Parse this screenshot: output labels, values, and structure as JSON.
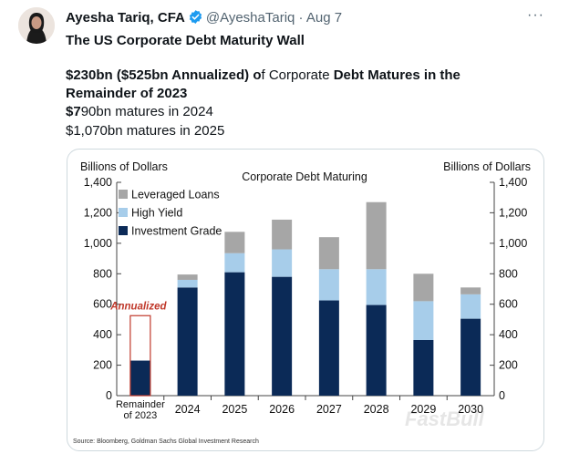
{
  "tweet": {
    "author_name": "Ayesha Tariq, CFA",
    "handle": "@AyeshaTariq",
    "separator": "·",
    "date": "Aug 7",
    "more_label": "···",
    "title": "The US Corporate Debt Maturity Wall",
    "line1_bold_a": "$230bn ($525bn Annualized) o",
    "line1_normal_a": "f Corporate ",
    "line1_bold_b": "Debt Matures in the",
    "line2": "Remainder of 2023",
    "line3_bold": "$7",
    "line3_normal": "90bn matures in 2024",
    "line4": "$1,070bn matures in 2025"
  },
  "chart_data": {
    "type": "bar",
    "title": "Corporate Debt Maturing",
    "ylabel_left": "Billions of Dollars",
    "ylabel_right": "Billions of Dollars",
    "ylim": [
      0,
      1400
    ],
    "yticks": [
      0,
      200,
      400,
      600,
      800,
      1000,
      1200,
      1400
    ],
    "ytick_labels": [
      "0",
      "200",
      "400",
      "600",
      "800",
      "1,000",
      "1,200",
      "1,400"
    ],
    "categories": [
      "Remainder of 2023",
      "2024",
      "2025",
      "2026",
      "2027",
      "2028",
      "2029",
      "2030"
    ],
    "category_lines": [
      [
        "Remainder",
        "of 2023"
      ],
      [
        "2024"
      ],
      [
        "2025"
      ],
      [
        "2026"
      ],
      [
        "2027"
      ],
      [
        "2028"
      ],
      [
        "2029"
      ],
      [
        "2030"
      ]
    ],
    "series": [
      {
        "name": "Investment Grade",
        "color": "#0b2a57",
        "values": [
          230,
          710,
          810,
          780,
          625,
          595,
          365,
          505
        ]
      },
      {
        "name": "High Yield",
        "color": "#a7cdea",
        "values": [
          0,
          50,
          125,
          180,
          205,
          235,
          255,
          160
        ]
      },
      {
        "name": "Leveraged Loans",
        "color": "#a6a6a6",
        "values": [
          0,
          35,
          140,
          195,
          210,
          440,
          180,
          45
        ]
      }
    ],
    "annualized": {
      "label": "Annualized",
      "value": 525,
      "category_index": 0,
      "color": "#c0392b"
    },
    "legend_placement": "top-left",
    "grid": false,
    "source": "Source: Bloomberg, Goldman Sachs Global Investment Research",
    "watermark": "FastBull"
  }
}
